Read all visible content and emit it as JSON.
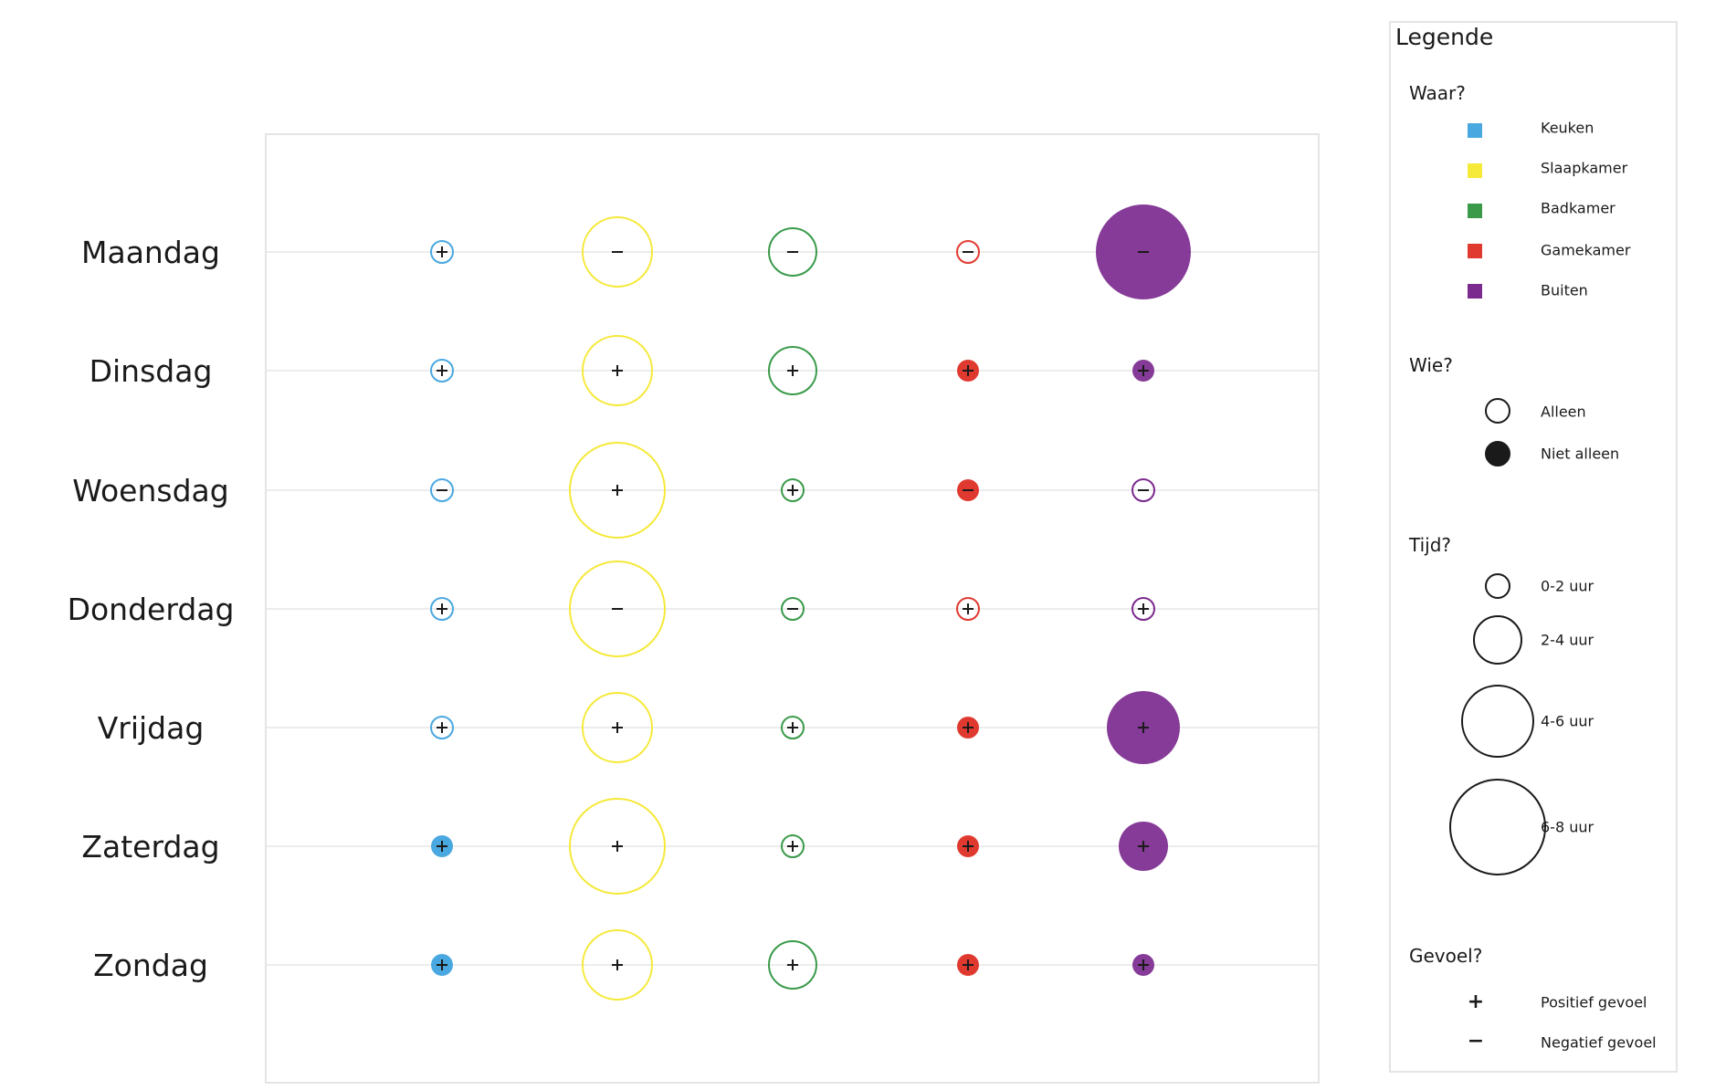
{
  "chart_data": {
    "type": "bubble-matrix",
    "title": "",
    "rows": [
      "Maandag",
      "Dinsdag",
      "Woensdag",
      "Donderdag",
      "Vrijdag",
      "Zaterdag",
      "Zondag"
    ],
    "columns": [
      "Keuken",
      "Slaapkamer",
      "Badkamer",
      "Gamekamer",
      "Buiten"
    ],
    "colors": {
      "Keuken": "#4aa8e0",
      "Slaapkamer": "#f5e93a",
      "Badkamer": "#3a9a4a",
      "Gamekamer": "#e03a30",
      "Buiten": "#7b2a8e"
    },
    "size_scale": [
      "0-2 uur",
      "2-4 uur",
      "4-6 uur",
      "6-8 uur"
    ],
    "cells": [
      [
        {
          "size": 0,
          "filled": false,
          "sign": "+"
        },
        {
          "size": 1,
          "filled": false,
          "sign": "-"
        },
        {
          "size": 1,
          "filled": false,
          "sign": "-"
        },
        {
          "size": 0,
          "filled": false,
          "sign": "-"
        },
        {
          "size": 3,
          "filled": true,
          "sign": "-"
        }
      ],
      [
        {
          "size": 0,
          "filled": false,
          "sign": "+"
        },
        {
          "size": 1,
          "filled": false,
          "sign": "+"
        },
        {
          "size": 1,
          "filled": false,
          "sign": "+"
        },
        {
          "size": 0,
          "filled": true,
          "sign": "+"
        },
        {
          "size": 0,
          "filled": true,
          "sign": "+"
        }
      ],
      [
        {
          "size": 0,
          "filled": false,
          "sign": "-"
        },
        {
          "size": 3,
          "filled": false,
          "sign": "+"
        },
        {
          "size": 0,
          "filled": false,
          "sign": "+"
        },
        {
          "size": 0,
          "filled": true,
          "sign": "-"
        },
        {
          "size": 0,
          "filled": false,
          "sign": "-"
        }
      ],
      [
        {
          "size": 0,
          "filled": false,
          "sign": "+"
        },
        {
          "size": 3,
          "filled": false,
          "sign": "-"
        },
        {
          "size": 0,
          "filled": false,
          "sign": "-"
        },
        {
          "size": 0,
          "filled": false,
          "sign": "+"
        },
        {
          "size": 0,
          "filled": false,
          "sign": "+"
        }
      ],
      [
        {
          "size": 0,
          "filled": false,
          "sign": "+"
        },
        {
          "size": 1,
          "filled": false,
          "sign": "+"
        },
        {
          "size": 0,
          "filled": false,
          "sign": "+"
        },
        {
          "size": 0,
          "filled": true,
          "sign": "+"
        },
        {
          "size": 2,
          "filled": true,
          "sign": "+"
        }
      ],
      [
        {
          "size": 0,
          "filled": true,
          "sign": "+"
        },
        {
          "size": 3,
          "filled": false,
          "sign": "+"
        },
        {
          "size": 0,
          "filled": false,
          "sign": "+"
        },
        {
          "size": 0,
          "filled": true,
          "sign": "+"
        },
        {
          "size": 1,
          "filled": true,
          "sign": "+"
        }
      ],
      [
        {
          "size": 0,
          "filled": true,
          "sign": "+"
        },
        {
          "size": 1,
          "filled": false,
          "sign": "+"
        },
        {
          "size": 1,
          "filled": false,
          "sign": "+"
        },
        {
          "size": 0,
          "filled": true,
          "sign": "+"
        },
        {
          "size": 0,
          "filled": true,
          "sign": "+"
        }
      ]
    ]
  },
  "legend": {
    "title": "Legende",
    "waar": {
      "heading": "Waar?",
      "items": [
        {
          "label": "Keuken",
          "color": "#4aa8e0"
        },
        {
          "label": "Slaapkamer",
          "color": "#f5e93a"
        },
        {
          "label": "Badkamer",
          "color": "#3a9a4a"
        },
        {
          "label": "Gamekamer",
          "color": "#e03a30"
        },
        {
          "label": "Buiten",
          "color": "#7b2a8e"
        }
      ]
    },
    "wie": {
      "heading": "Wie?",
      "items": [
        {
          "label": "Alleen",
          "filled": false
        },
        {
          "label": "Niet alleen",
          "filled": true
        }
      ]
    },
    "tijd": {
      "heading": "Tijd?",
      "items": [
        {
          "label": "0-2 uur"
        },
        {
          "label": "2-4 uur"
        },
        {
          "label": "4-6 uur"
        },
        {
          "label": "6-8 uur"
        }
      ]
    },
    "gevoel": {
      "heading": "Gevoel?",
      "items": [
        {
          "label": "Positief gevoel",
          "sign": "+"
        },
        {
          "label": "Negatief gevoel",
          "sign": "−"
        }
      ]
    }
  }
}
